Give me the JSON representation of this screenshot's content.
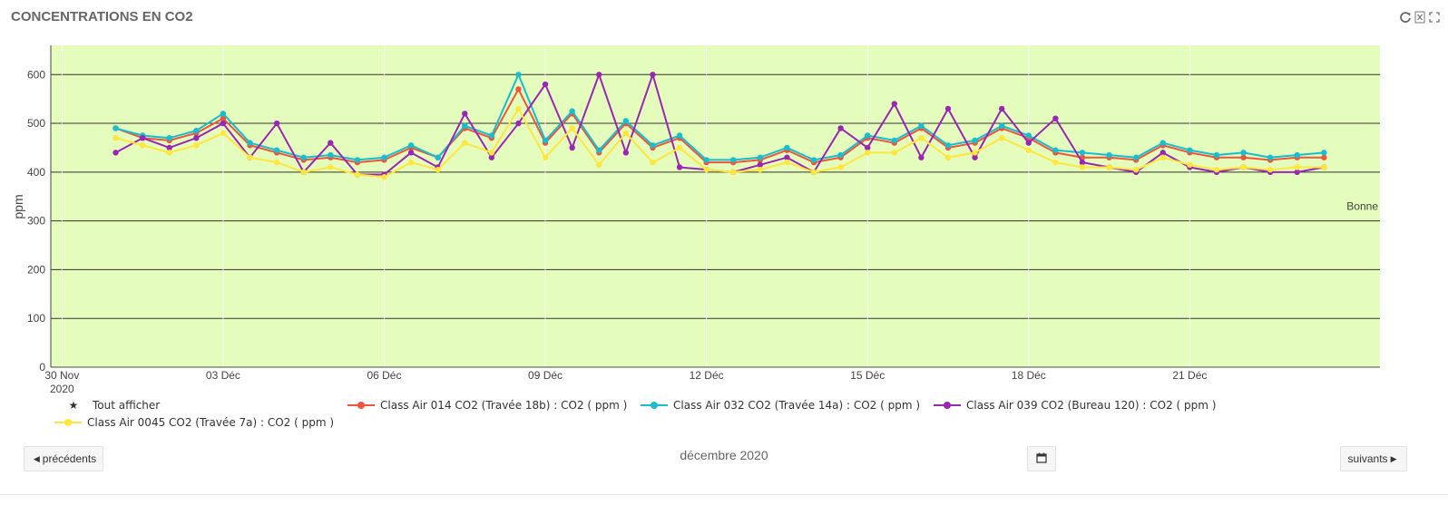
{
  "header": {
    "title": "CONCENTRATIONS EN CO2"
  },
  "tools": [
    {
      "name": "refresh-icon"
    },
    {
      "name": "export-excel-icon"
    },
    {
      "name": "fullscreen-icon"
    }
  ],
  "navigation": {
    "prev_label": "précédents",
    "next_label": "suivants",
    "month_label": "décembre 2020",
    "calendar_icon": "calendar-icon"
  },
  "legend": {
    "show_all": "Tout afficher"
  },
  "chart_data": {
    "type": "line",
    "ylabel": "ppm",
    "ylim": [
      0,
      660
    ],
    "yticks": [
      0,
      100,
      200,
      300,
      400,
      500,
      600
    ],
    "xlim": [
      "2020-11-29T19:00",
      "2020-12-24T13:00"
    ],
    "xticks": [
      {
        "date": "2020-11-30",
        "label": "30 Nov",
        "sublabel": "2020"
      },
      {
        "date": "2020-12-03",
        "label": "03 Déc"
      },
      {
        "date": "2020-12-06",
        "label": "06 Déc"
      },
      {
        "date": "2020-12-09",
        "label": "09 Déc"
      },
      {
        "date": "2020-12-12",
        "label": "12 Déc"
      },
      {
        "date": "2020-12-15",
        "label": "15 Déc"
      },
      {
        "date": "2020-12-18",
        "label": "18 Déc"
      },
      {
        "date": "2020-12-21",
        "label": "21 Déc"
      }
    ],
    "background_color": "#e4fcbc",
    "threshold_lines": [
      100,
      200,
      300,
      400,
      500,
      600
    ],
    "band_label": "Bonne",
    "band_label_value": 330,
    "grid": true,
    "x": [
      "2020-12-01T00:00",
      "2020-12-01T12:00",
      "2020-12-02T00:00",
      "2020-12-02T12:00",
      "2020-12-03T00:00",
      "2020-12-03T12:00",
      "2020-12-04T00:00",
      "2020-12-04T12:00",
      "2020-12-05T00:00",
      "2020-12-05T12:00",
      "2020-12-06T00:00",
      "2020-12-06T12:00",
      "2020-12-07T00:00",
      "2020-12-07T12:00",
      "2020-12-08T00:00",
      "2020-12-08T12:00",
      "2020-12-09T00:00",
      "2020-12-09T12:00",
      "2020-12-10T00:00",
      "2020-12-10T12:00",
      "2020-12-11T00:00",
      "2020-12-11T12:00",
      "2020-12-12T00:00",
      "2020-12-12T12:00",
      "2020-12-13T00:00",
      "2020-12-13T12:00",
      "2020-12-14T00:00",
      "2020-12-14T12:00",
      "2020-12-15T00:00",
      "2020-12-15T12:00",
      "2020-12-16T00:00",
      "2020-12-16T12:00",
      "2020-12-17T00:00",
      "2020-12-17T12:00",
      "2020-12-18T00:00",
      "2020-12-18T12:00",
      "2020-12-19T00:00",
      "2020-12-19T12:00",
      "2020-12-20T00:00",
      "2020-12-20T12:00",
      "2020-12-21T00:00",
      "2020-12-21T12:00",
      "2020-12-22T00:00",
      "2020-12-22T12:00",
      "2020-12-23T00:00",
      "2020-12-23T12:00"
    ],
    "series": [
      {
        "name": "Class Air 014 CO2 (Travée 18b) : CO2 ( ppm )",
        "color": "#f0553b",
        "values": [
          490,
          470,
          465,
          480,
          510,
          455,
          440,
          425,
          430,
          420,
          425,
          450,
          430,
          490,
          470,
          570,
          460,
          520,
          440,
          500,
          450,
          470,
          420,
          420,
          425,
          445,
          420,
          430,
          470,
          460,
          490,
          450,
          460,
          490,
          470,
          440,
          430,
          430,
          425,
          455,
          440,
          430,
          430,
          425,
          430,
          430
        ]
      },
      {
        "name": "Class Air 032 CO2 (Travée 14a) : CO2 ( ppm )",
        "color": "#17becf",
        "values": [
          490,
          475,
          470,
          485,
          520,
          460,
          445,
          430,
          435,
          425,
          430,
          455,
          430,
          495,
          475,
          600,
          465,
          525,
          445,
          505,
          455,
          475,
          425,
          425,
          430,
          450,
          425,
          435,
          475,
          465,
          495,
          455,
          465,
          495,
          475,
          445,
          440,
          435,
          430,
          460,
          445,
          435,
          440,
          430,
          435,
          440
        ]
      },
      {
        "name": "Class Air 039 CO2 (Bureau 120) : CO2 ( ppm )",
        "color": "#9b26b6",
        "values": [
          440,
          470,
          450,
          470,
          500,
          430,
          500,
          400,
          460,
          395,
          395,
          440,
          410,
          520,
          430,
          500,
          580,
          450,
          600,
          440,
          600,
          410,
          405,
          400,
          415,
          430,
          400,
          490,
          450,
          540,
          430,
          530,
          430,
          530,
          460,
          510,
          420,
          410,
          400,
          440,
          410,
          400,
          410,
          400,
          400,
          410
        ]
      },
      {
        "name": "Class Air 0045 CO2 (Travée 7a) : CO2 ( ppm )",
        "color": "#ffe63c",
        "values": [
          470,
          455,
          440,
          455,
          480,
          430,
          420,
          400,
          410,
          395,
          390,
          420,
          405,
          460,
          440,
          530,
          430,
          490,
          415,
          480,
          420,
          450,
          405,
          400,
          405,
          420,
          400,
          410,
          440,
          440,
          470,
          430,
          440,
          470,
          445,
          420,
          410,
          410,
          405,
          430,
          415,
          405,
          410,
          405,
          410,
          410
        ]
      }
    ]
  }
}
